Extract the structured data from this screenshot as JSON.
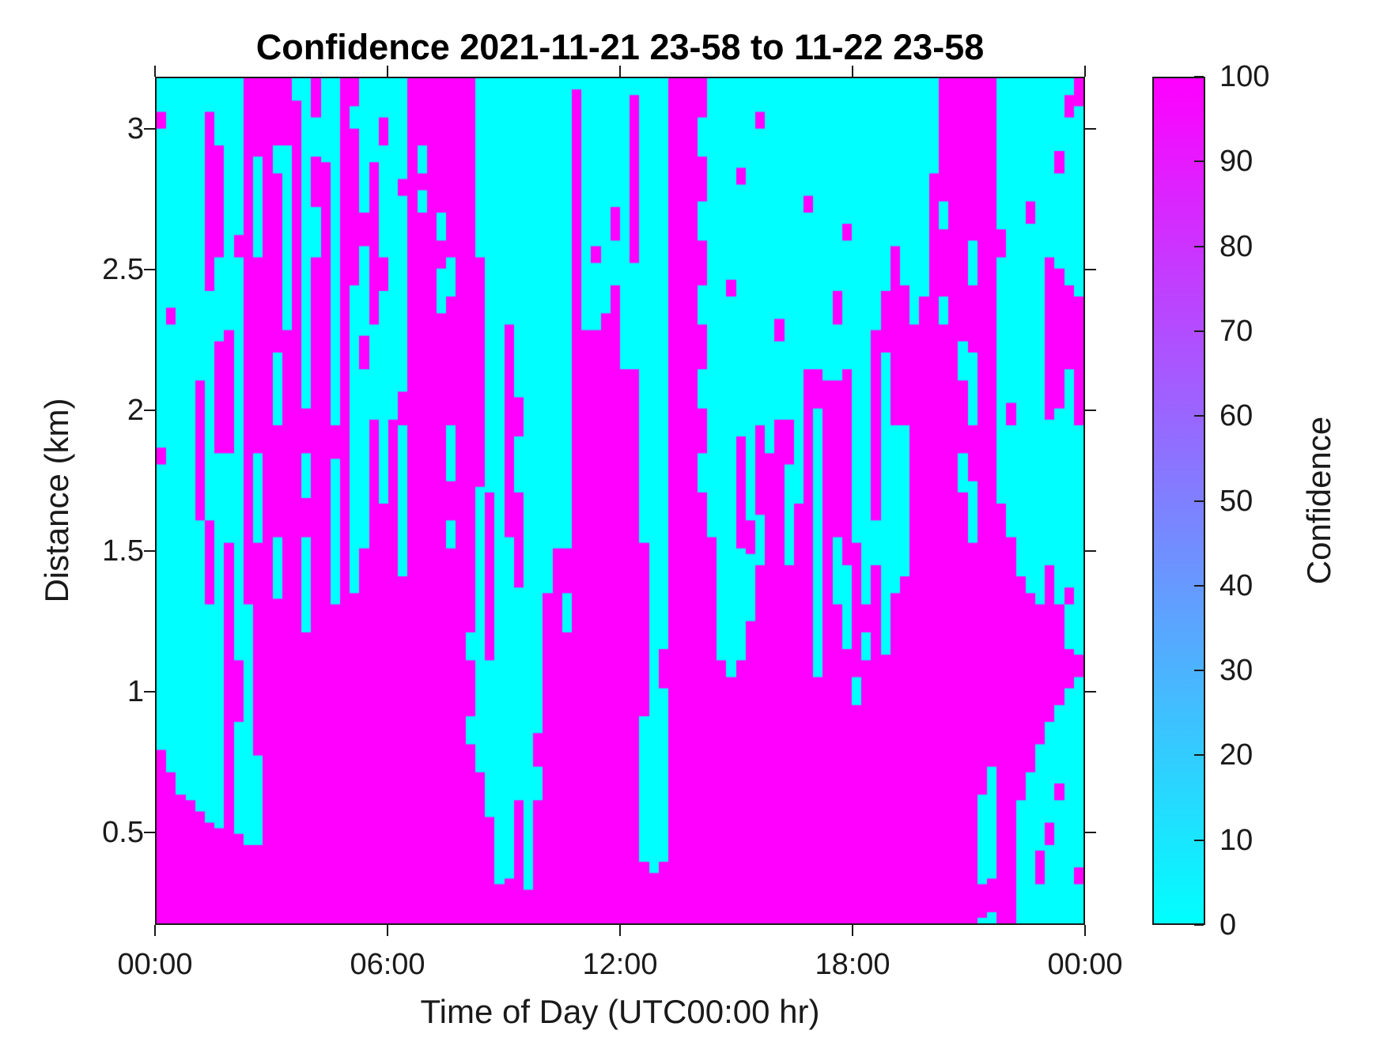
{
  "chart_data": {
    "type": "heatmap",
    "title": "Confidence 2021-11-21 23-58 to 11-22 23-58",
    "xlabel": "Time of Day (UTC00:00 hr)",
    "ylabel": "Distance (km)",
    "colorbar_label": "Confidence",
    "x_tick_labels": [
      "00:00",
      "06:00",
      "12:00",
      "18:00",
      "00:00"
    ],
    "x_tick_hours": [
      0,
      6,
      12,
      18,
      24
    ],
    "y_tick_labels": [
      "0.5",
      "1",
      "1.5",
      "2",
      "2.5",
      "3"
    ],
    "y_tick_km": [
      0.5,
      1,
      1.5,
      2,
      2.5,
      3
    ],
    "x_range_hours": [
      0,
      24
    ],
    "y_range_km": [
      0.17,
      3.185
    ],
    "value_range": [
      0,
      100
    ],
    "grid": false,
    "legend_position": "right-colorbar",
    "colorbar_ticks": [
      0,
      10,
      20,
      30,
      40,
      50,
      60,
      70,
      80,
      90,
      100
    ],
    "colormap": {
      "name": "cool",
      "low": "#00ffff",
      "high": "#ff00ff"
    },
    "field_description": "Binary-looking confidence field: cells are ~0 (cyan) or ~100 (magenta). Each entry below is one 15-min time column listing magenta (confidence ~100) altitude intervals in km; everything else in the column is cyan (~0).",
    "column_duration_min": 15,
    "high_confidence_km_intervals": [
      [
        [
          0.15,
          0.79
        ],
        [
          1.8,
          1.87
        ],
        [
          3.0,
          3.07
        ]
      ],
      [
        [
          0.15,
          0.7
        ],
        [
          2.3,
          2.37
        ]
      ],
      [
        [
          0.15,
          0.63
        ]
      ],
      [
        [
          0.15,
          0.6
        ]
      ],
      [
        [
          0.15,
          0.57
        ],
        [
          1.6,
          2.1
        ]
      ],
      [
        [
          0.15,
          0.52
        ],
        [
          1.3,
          1.6
        ],
        [
          2.43,
          3.07
        ]
      ],
      [
        [
          0.15,
          0.5
        ],
        [
          1.85,
          2.25
        ],
        [
          2.55,
          2.95
        ]
      ],
      [
        [
          0.15,
          1.52
        ],
        [
          1.85,
          2.28
        ]
      ],
      [
        [
          0.15,
          0.48
        ],
        [
          0.88,
          1.1
        ],
        [
          2.55,
          2.62
        ]
      ],
      [
        [
          0.15,
          0.45
        ],
        [
          1.3,
          3.19
        ]
      ],
      [
        [
          0.15,
          0.45
        ],
        [
          0.76,
          1.52
        ],
        [
          1.85,
          2.55
        ],
        [
          2.9,
          3.19
        ]
      ],
      [
        [
          0.15,
          3.19
        ]
      ],
      [
        [
          0.15,
          1.33
        ],
        [
          1.55,
          1.95
        ],
        [
          2.2,
          2.85
        ],
        [
          2.95,
          3.19
        ]
      ],
      [
        [
          0.15,
          2.28
        ],
        [
          2.95,
          3.19
        ]
      ],
      [
        [
          0.15,
          3.1
        ]
      ],
      [
        [
          0.15,
          1.2
        ],
        [
          1.55,
          1.68
        ],
        [
          1.85,
          2.0
        ]
      ],
      [
        [
          0.15,
          2.55
        ],
        [
          2.72,
          2.9
        ],
        [
          3.05,
          3.19
        ]
      ],
      [
        [
          0.15,
          2.89
        ]
      ],
      [
        [
          0.15,
          1.3
        ],
        [
          1.82,
          1.95
        ]
      ],
      [
        [
          0.15,
          3.19
        ]
      ],
      [
        [
          0.15,
          1.35
        ],
        [
          2.45,
          3.0
        ],
        [
          3.08,
          3.19
        ]
      ],
      [
        [
          0.15,
          1.5
        ],
        [
          2.15,
          2.27
        ],
        [
          2.58,
          2.7
        ]
      ],
      [
        [
          0.15,
          1.97
        ],
        [
          2.3,
          2.89
        ]
      ],
      [
        [
          0.15,
          1.67
        ],
        [
          2.43,
          2.55
        ],
        [
          2.95,
          3.05
        ]
      ],
      [
        [
          0.15,
          1.97
        ]
      ],
      [
        [
          0.15,
          1.4
        ],
        [
          1.95,
          2.07
        ],
        [
          2.76,
          2.83
        ]
      ],
      [
        [
          0.15,
          3.19
        ]
      ],
      [
        [
          0.15,
          2.7
        ],
        [
          2.78,
          2.85
        ],
        [
          2.95,
          3.19
        ]
      ],
      [
        [
          0.15,
          3.19
        ]
      ],
      [
        [
          0.15,
          2.35
        ],
        [
          2.5,
          2.6
        ],
        [
          2.7,
          3.19
        ]
      ],
      [
        [
          0.15,
          1.5
        ],
        [
          1.6,
          1.75
        ],
        [
          1.95,
          2.4
        ],
        [
          2.55,
          3.19
        ]
      ],
      [
        [
          0.15,
          3.19
        ]
      ],
      [
        [
          0.15,
          0.8
        ],
        [
          0.9,
          1.1
        ],
        [
          1.2,
          3.19
        ]
      ],
      [
        [
          0.15,
          0.7
        ],
        [
          1.73,
          2.55
        ]
      ],
      [
        [
          0.15,
          0.55
        ],
        [
          1.1,
          1.7
        ]
      ],
      [
        [
          0.15,
          0.3
        ]
      ],
      [
        [
          0.15,
          0.33
        ],
        [
          1.55,
          2.3
        ]
      ],
      [
        [
          0.15,
          0.6
        ],
        [
          1.37,
          1.7
        ],
        [
          1.9,
          2.05
        ]
      ],
      [
        [
          0.15,
          0.28
        ]
      ],
      [
        [
          0.15,
          0.6
        ],
        [
          0.72,
          0.85
        ]
      ],
      [
        [
          0.15,
          1.35
        ]
      ],
      [
        [
          0.15,
          1.5
        ]
      ],
      [
        [
          0.15,
          1.2
        ],
        [
          1.35,
          1.5
        ]
      ],
      [
        [
          0.15,
          3.15
        ]
      ],
      [
        [
          0.15,
          2.28
        ]
      ],
      [
        [
          0.15,
          2.28
        ],
        [
          2.52,
          2.59
        ]
      ],
      [
        [
          0.15,
          2.35
        ]
      ],
      [
        [
          0.15,
          2.45
        ],
        [
          2.6,
          2.72
        ]
      ],
      [
        [
          0.15,
          2.15
        ]
      ],
      [
        [
          0.15,
          2.15
        ],
        [
          2.52,
          3.13
        ]
      ],
      [
        [
          0.15,
          0.39
        ],
        [
          0.91,
          1.52
        ]
      ],
      [
        [
          0.15,
          0.35
        ]
      ],
      [
        [
          0.15,
          0.39
        ],
        [
          1.0,
          1.15
        ]
      ],
      [
        [
          0.15,
          3.19
        ]
      ],
      [
        [
          0.15,
          3.19
        ]
      ],
      [
        [
          0.15,
          3.19
        ]
      ],
      [
        [
          0.15,
          1.7
        ],
        [
          1.85,
          2.0
        ],
        [
          2.15,
          2.3
        ],
        [
          2.45,
          2.6
        ],
        [
          2.75,
          2.9
        ],
        [
          3.05,
          3.19
        ]
      ],
      [
        [
          0.15,
          1.55
        ]
      ],
      [
        [
          0.15,
          1.1
        ]
      ],
      [
        [
          0.15,
          1.04
        ],
        [
          2.4,
          2.47
        ]
      ],
      [
        [
          0.15,
          1.1
        ],
        [
          1.5,
          1.9
        ],
        [
          2.8,
          2.87
        ]
      ],
      [
        [
          0.15,
          1.25
        ],
        [
          1.48,
          1.6
        ]
      ],
      [
        [
          0.15,
          1.45
        ],
        [
          1.63,
          1.95
        ],
        [
          3.0,
          3.07
        ]
      ],
      [
        [
          0.15,
          1.85
        ]
      ],
      [
        [
          0.15,
          1.97
        ],
        [
          2.25,
          2.32
        ]
      ],
      [
        [
          0.15,
          1.45
        ],
        [
          1.8,
          1.97
        ]
      ],
      [
        [
          0.15,
          1.67
        ]
      ],
      [
        [
          0.15,
          2.15
        ],
        [
          2.7,
          2.77
        ]
      ],
      [
        [
          0.15,
          1.05
        ],
        [
          2.0,
          2.15
        ]
      ],
      [
        [
          0.15,
          2.1
        ]
      ],
      [
        [
          0.15,
          1.3
        ],
        [
          1.55,
          2.1
        ],
        [
          2.3,
          2.42
        ]
      ],
      [
        [
          0.15,
          1.15
        ],
        [
          1.45,
          2.15
        ],
        [
          2.6,
          2.67
        ]
      ],
      [
        [
          0.15,
          0.95
        ],
        [
          1.05,
          1.52
        ]
      ],
      [
        [
          0.15,
          1.1
        ],
        [
          1.2,
          1.3
        ]
      ],
      [
        [
          0.15,
          1.45
        ],
        [
          1.6,
          2.28
        ]
      ],
      [
        [
          0.15,
          1.12
        ],
        [
          2.2,
          2.43
        ]
      ],
      [
        [
          0.15,
          1.35
        ],
        [
          1.95,
          2.58
        ]
      ],
      [
        [
          0.15,
          1.4
        ],
        [
          1.95,
          2.45
        ]
      ],
      [
        [
          0.15,
          2.3
        ]
      ],
      [
        [
          0.15,
          2.4
        ]
      ],
      [
        [
          0.15,
          2.85
        ]
      ],
      [
        [
          0.15,
          2.3
        ],
        [
          2.4,
          2.65
        ],
        [
          2.75,
          3.19
        ]
      ],
      [
        [
          0.15,
          3.19
        ]
      ],
      [
        [
          0.15,
          1.7
        ],
        [
          1.85,
          2.1
        ],
        [
          2.25,
          3.19
        ]
      ],
      [
        [
          0.15,
          1.52
        ],
        [
          1.75,
          1.95
        ],
        [
          2.2,
          2.45
        ],
        [
          2.6,
          3.19
        ]
      ],
      [
        [
          0.18,
          0.3
        ],
        [
          0.62,
          3.19
        ]
      ],
      [
        [
          0.2,
          0.33
        ],
        [
          0.72,
          3.19
        ]
      ],
      [
        [
          0.15,
          1.67
        ],
        [
          2.55,
          2.65
        ]
      ],
      [
        [
          0.15,
          1.55
        ],
        [
          1.95,
          2.02
        ]
      ],
      [
        [
          0.6,
          1.4
        ]
      ],
      [
        [
          0.7,
          1.35
        ],
        [
          2.67,
          2.74
        ]
      ],
      [
        [
          0.3,
          0.42
        ],
        [
          0.8,
          1.3
        ]
      ],
      [
        [
          0.45,
          0.52
        ],
        [
          0.88,
          1.45
        ],
        [
          1.97,
          2.55
        ]
      ],
      [
        [
          0.6,
          0.67
        ],
        [
          0.95,
          1.3
        ],
        [
          2.0,
          2.5
        ],
        [
          2.85,
          2.92
        ]
      ],
      [
        [
          1.0,
          1.15
        ],
        [
          1.3,
          1.37
        ],
        [
          2.15,
          2.45
        ],
        [
          3.05,
          3.12
        ]
      ],
      [
        [
          0.3,
          0.37
        ],
        [
          1.05,
          1.12
        ],
        [
          1.95,
          2.4
        ],
        [
          3.08,
          3.19
        ]
      ]
    ]
  },
  "colors": {
    "background": "#ffffff",
    "axis": "#1a1a1a",
    "tick_text": "#1a1a1a",
    "title_text": "#000000",
    "heat_low": "#00ffff",
    "heat_high": "#ff00ff"
  }
}
